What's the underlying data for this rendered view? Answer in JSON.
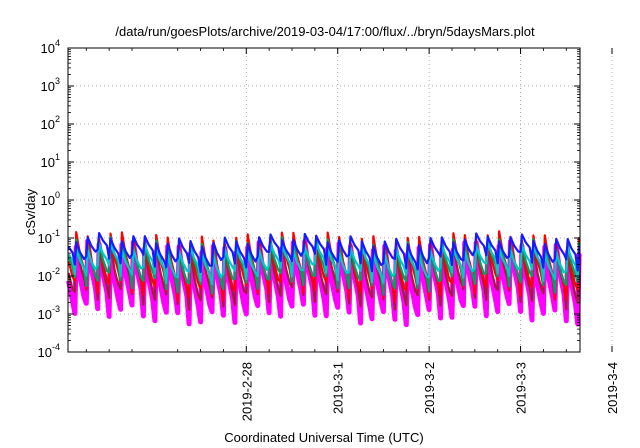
{
  "chart_data": {
    "type": "line",
    "title": "/data/run/goesPlots/archive/2019-03-04/17:00/flux/../bryn/5daysMars.plot",
    "xlabel": "Coordinated Universal Time (UTC)",
    "ylabel": "cSv/day",
    "yscale": "log",
    "ylim_exponents": [
      -4,
      4
    ],
    "y_ticks": [
      {
        "base": "10",
        "exp": "-4"
      },
      {
        "base": "10",
        "exp": "-3"
      },
      {
        "base": "10",
        "exp": "-2"
      },
      {
        "base": "10",
        "exp": "-1"
      },
      {
        "base": "10",
        "exp": "0"
      },
      {
        "base": "10",
        "exp": "1"
      },
      {
        "base": "10",
        "exp": "2"
      },
      {
        "base": "10",
        "exp": "3"
      },
      {
        "base": "10",
        "exp": "4"
      }
    ],
    "xlim_days": [
      -1.95,
      3.65
    ],
    "x_ticks": [
      {
        "label": "2019-2-28",
        "day": 0
      },
      {
        "label": "2019-3-1",
        "day": 1
      },
      {
        "label": "2019-3-2",
        "day": 2
      },
      {
        "label": "2019-3-3",
        "day": 3
      },
      {
        "label": "2019-3-4",
        "day": 4
      }
    ],
    "grid": true,
    "cycles_per_day": 8,
    "series": [
      {
        "color": "#ff00ff",
        "peak_log": -1.25,
        "trough_log": -3.0
      },
      {
        "color": "#a0203a",
        "peak_log": -1.2,
        "trough_log": -2.6
      },
      {
        "color": "#ff0000",
        "peak_log": -1.0,
        "trough_log": -2.4
      },
      {
        "color": "#00a060",
        "peak_log": -1.15,
        "trough_log": -2.2
      },
      {
        "color": "#00c8c8",
        "peak_log": -1.3,
        "trough_log": -1.95
      },
      {
        "color": "#1a1aff",
        "peak_log": -1.05,
        "trough_log": -1.6
      }
    ]
  }
}
